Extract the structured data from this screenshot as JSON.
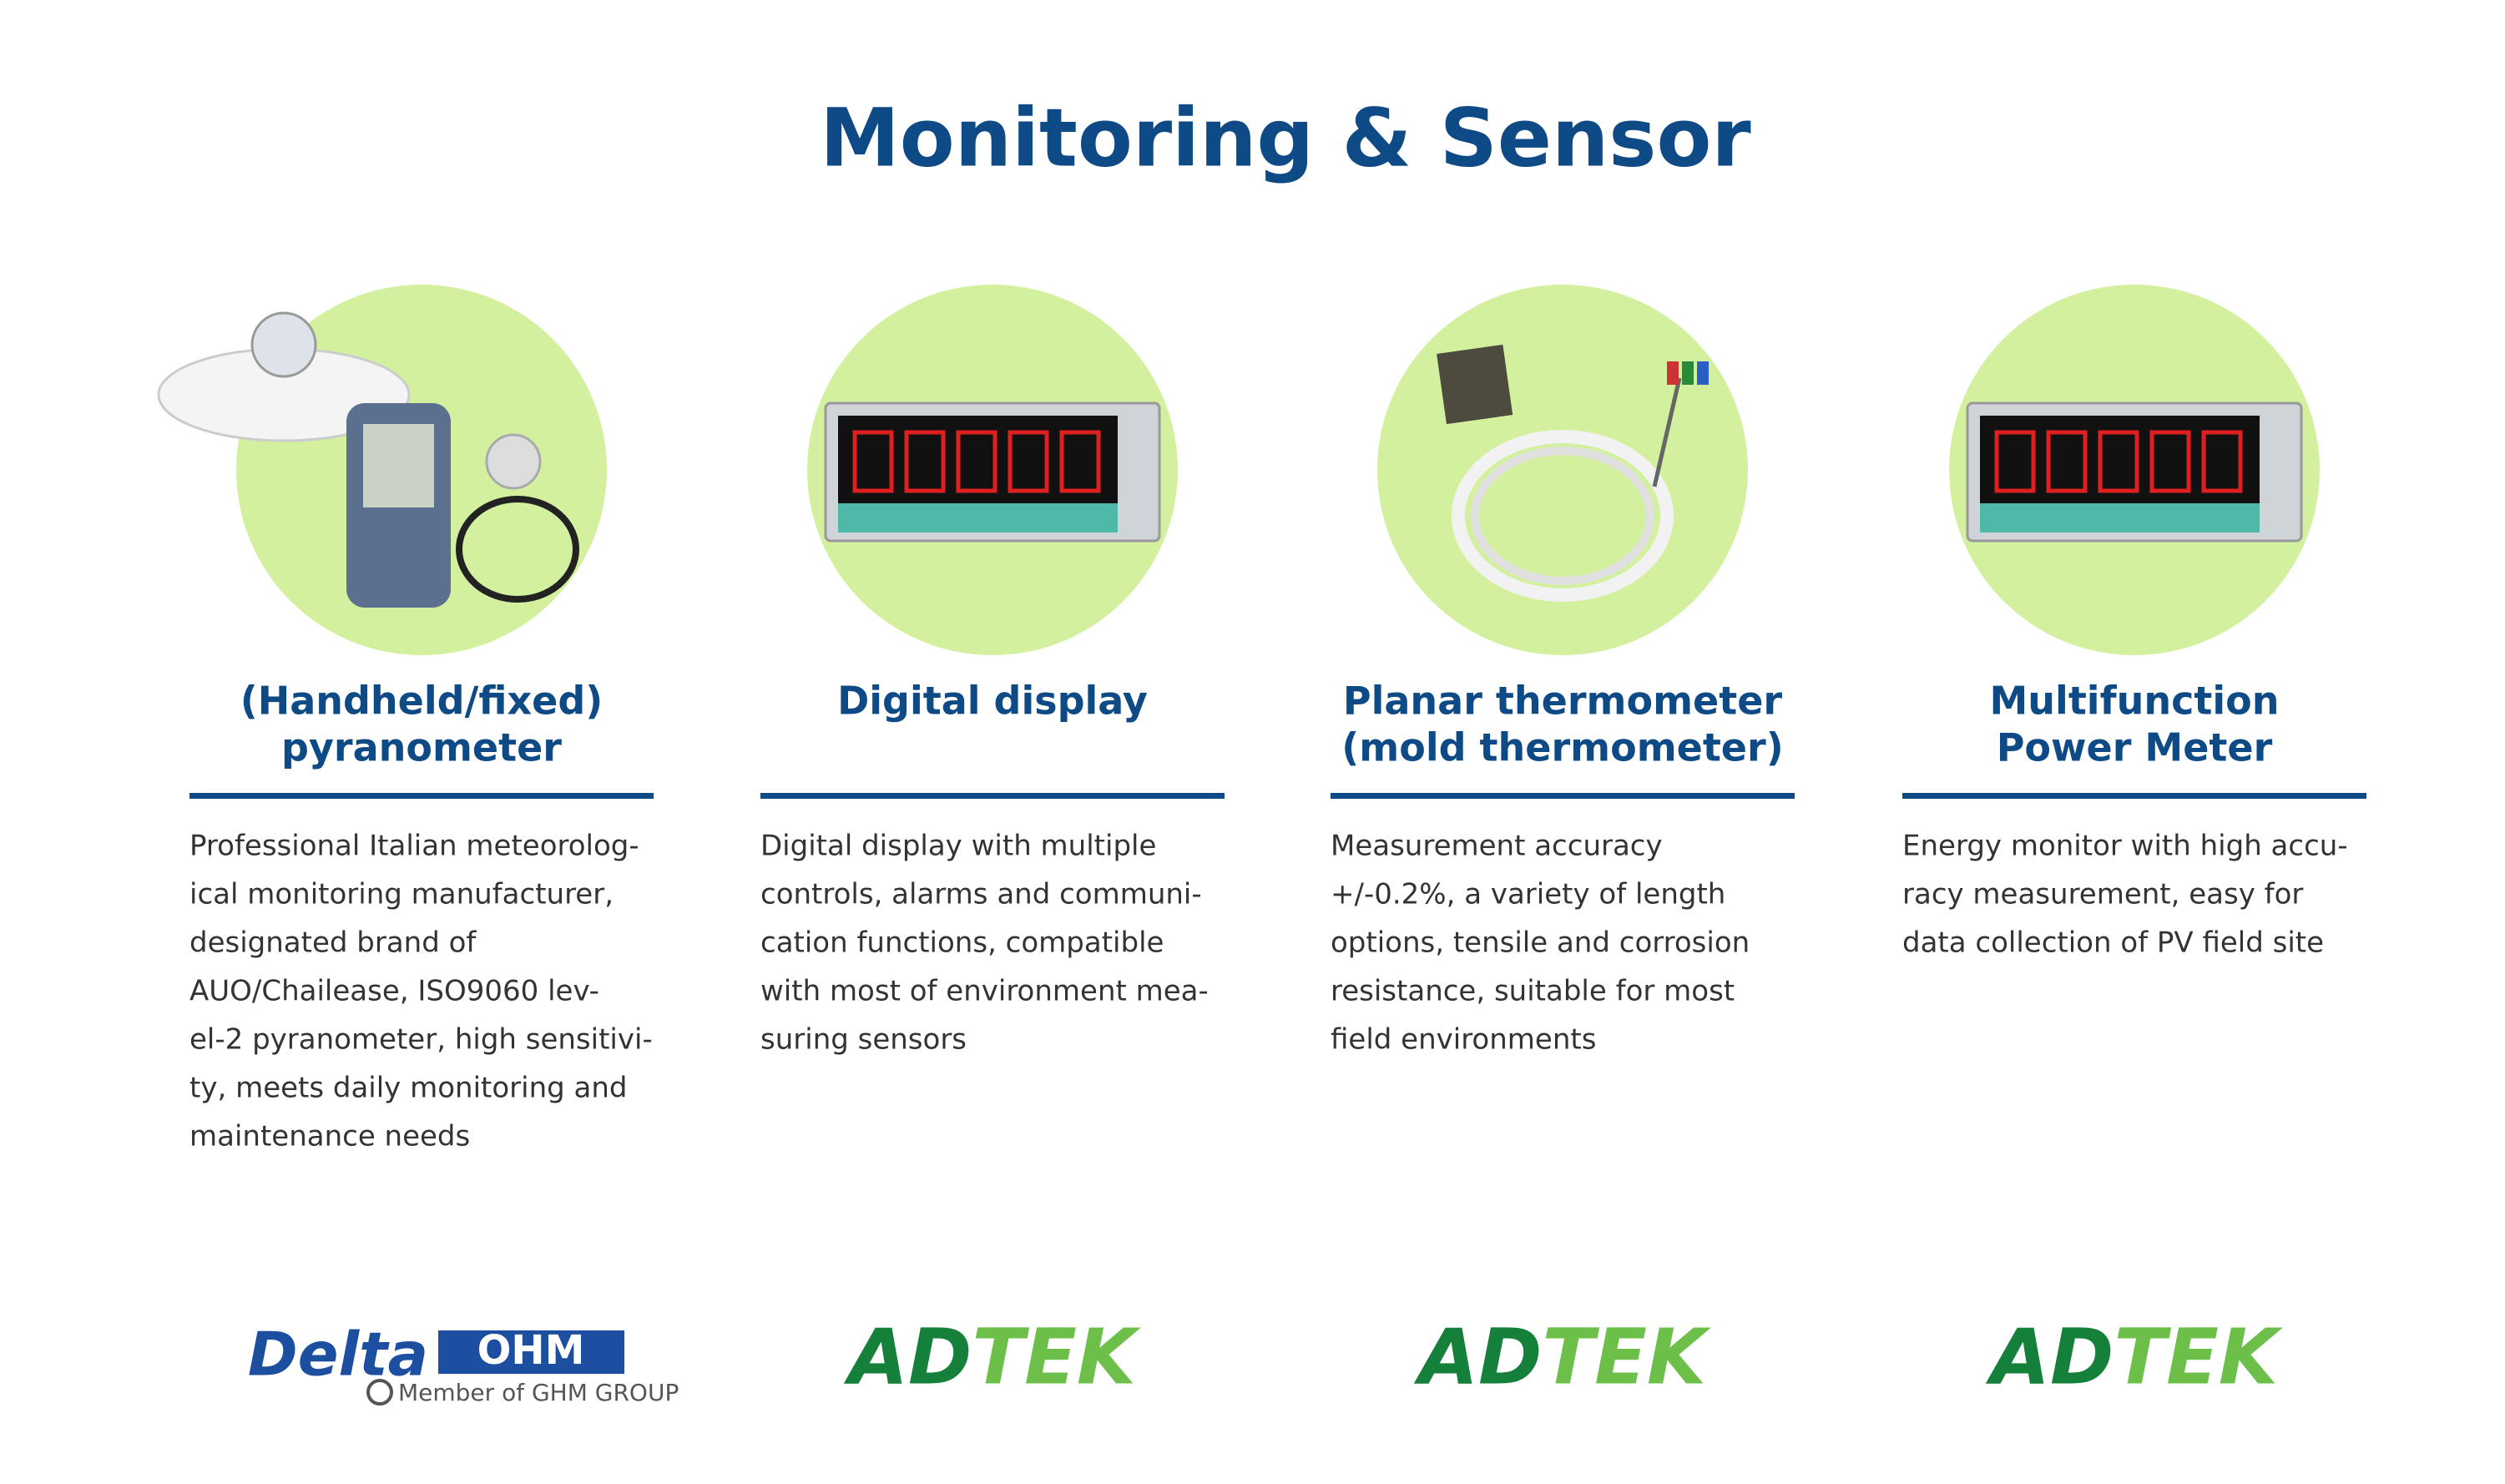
{
  "title": "Monitoring & Sensor",
  "products": [
    {
      "heading": [
        "(Handheld/fixed)",
        "pyranometer"
      ],
      "description": [
        "Professional Italian meteorolog-",
        "ical monitoring manufacturer,",
        "designated brand of",
        "AUO/Chailease, ISO9060 lev-",
        "el-2 pyranometer, high sensitivi-",
        "ty, meets daily monitoring and",
        "maintenance needs"
      ],
      "logo": {
        "name": "Delta",
        "box": "OHM",
        "tagline": "Member of GHM GROUP"
      }
    },
    {
      "heading": [
        "Digital display"
      ],
      "description": [
        "Digital display with multiple",
        "controls, alarms and communi-",
        "cation functions, compatible",
        "with most of  environment mea-",
        "suring sensors"
      ],
      "logo": {
        "name": "ADTEK"
      }
    },
    {
      "heading": [
        "Planar thermometer",
        "(mold thermometer)"
      ],
      "description": [
        "Measurement accuracy",
        "+/-0.2%, a variety of length",
        "options, tensile and corrosion",
        "resistance, suitable for most",
        "field environments"
      ],
      "logo": {
        "name": "ADTEK"
      }
    },
    {
      "heading": [
        "Multifunction",
        "Power Meter"
      ],
      "description": [
        "Energy monitor with high accu-",
        "racy measurement, easy for",
        "data collection of PV field site"
      ],
      "logo": {
        "name": "ADTEK"
      }
    }
  ]
}
